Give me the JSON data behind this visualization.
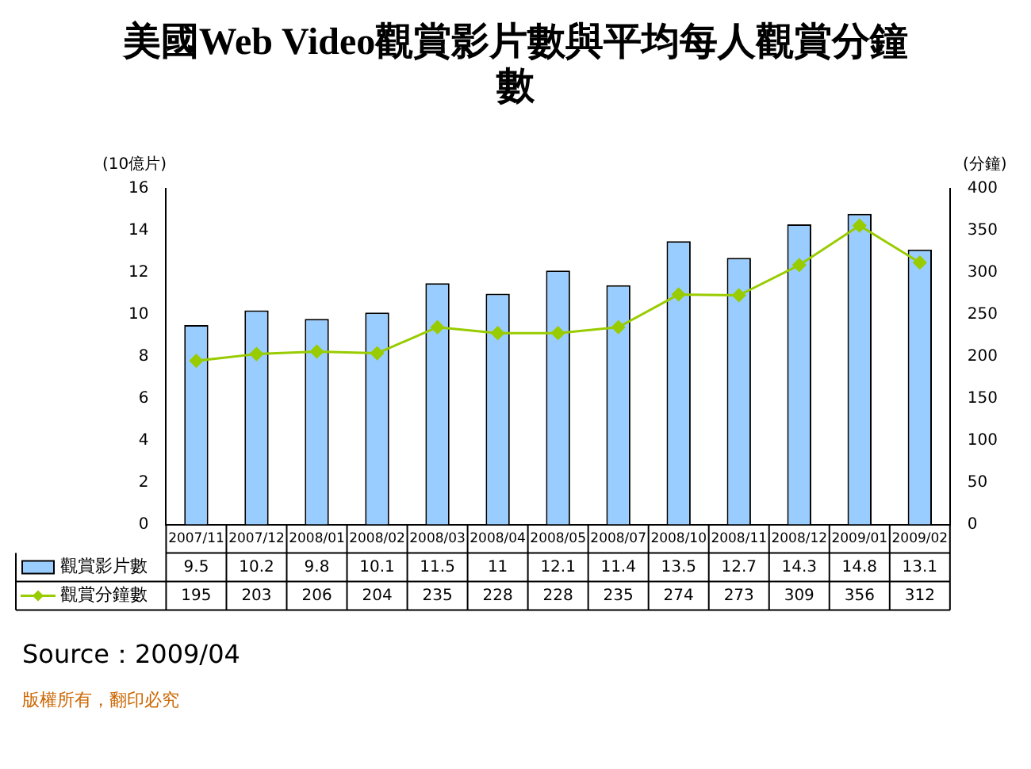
{
  "chart_data": {
    "type": "bar",
    "title": "美國Web Video觀賞影片數與平均每人觀賞分鐘數",
    "categories": [
      "2007/11",
      "2007/12",
      "2008/01",
      "2008/02",
      "2008/03",
      "2008/04",
      "2008/05",
      "2008/07",
      "2008/10",
      "2008/11",
      "2008/12",
      "2009/01",
      "2009/02"
    ],
    "series": [
      {
        "name": "觀賞影片數",
        "color": "#99ccff",
        "values": [
          9.5,
          10.2,
          9.8,
          10.1,
          11.5,
          11,
          12.1,
          11.4,
          13.5,
          12.7,
          14.3,
          14.8,
          13.1
        ]
      },
      {
        "name": "觀賞分鐘數",
        "type": "line",
        "axis": "y2",
        "color": "#99cc00",
        "marker": "diamond",
        "values": [
          195,
          203,
          206,
          204,
          235,
          228,
          228,
          235,
          274,
          273,
          309,
          356,
          312
        ]
      }
    ],
    "ylabel": "(10億片)",
    "y2label": "(分鐘)",
    "ylim": [
      0,
      16
    ],
    "yticks": [
      0,
      2,
      4,
      6,
      8,
      10,
      12,
      14,
      16
    ],
    "y2lim": [
      0,
      400
    ],
    "y2ticks": [
      0,
      50,
      100,
      150,
      200,
      250,
      300,
      350,
      400
    ],
    "data_labels": true,
    "legend": "bottom",
    "grid": false,
    "annotations": [
      "Source：2009/04",
      "版權所有，翻印必究"
    ]
  }
}
